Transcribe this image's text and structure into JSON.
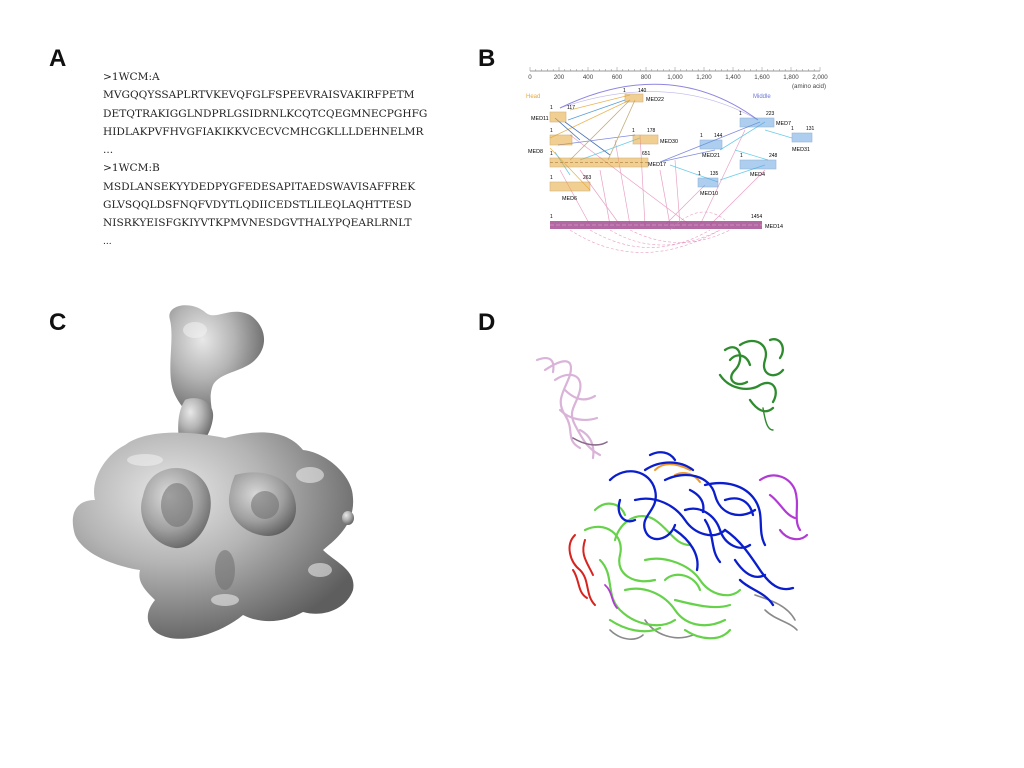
{
  "panels": {
    "a": {
      "letter": "A"
    },
    "b": {
      "letter": "B"
    },
    "c": {
      "letter": "C"
    },
    "d": {
      "letter": "D"
    }
  },
  "sequences": [
    ">1WCM:A",
    "MVGQQYSSAPLRTVKEVQFGLFSPEEVRAISVAKIRFPETM",
    "DETQTRAKIGGLNDPRLGSIDRNLKCQTCQEGMNECPGHFG",
    "HIDLAKPVFHVGFIAKIKKVCECVCMHCGKLLLDEHNELMR",
    "...",
    ">1WCM:B",
    "MSDLANSEKYYDEDPYGFEDESAPITAEDSWAVISAFFREK",
    "GLVSQQLDSFNQFVDYTLQDIICEDSTLILEQLAQHTTESD",
    "NISRKYEISFGKIYVTKPMVNESDGVTHALYPQEARLRNLT",
    "..."
  ],
  "crosslink_map": {
    "axis_ticks": [
      "0",
      "200",
      "400",
      "600",
      "800",
      "1,000",
      "1,200",
      "1,400",
      "1,600",
      "1,800",
      "2,000"
    ],
    "axis_unit": "(amino acid)",
    "module_head": "Head",
    "module_middle": "Middle",
    "proteins": {
      "med11": {
        "name": "MED11",
        "start": "1",
        "end": "117"
      },
      "med22": {
        "name": "MED22",
        "start": "1",
        "end": "140"
      },
      "med8": {
        "name": "MED8",
        "start": "1",
        "end": ""
      },
      "med30": {
        "name": "MED30",
        "start": "1",
        "end": "178"
      },
      "med17": {
        "name": "MED17",
        "start": "1",
        "end": "651"
      },
      "med6": {
        "name": "MED6",
        "start": "1",
        "end": "263"
      },
      "med21": {
        "name": "MED21",
        "start": "1",
        "end": "144"
      },
      "med7": {
        "name": "MED7",
        "start": "1",
        "end": "223"
      },
      "med31": {
        "name": "MED31",
        "start": "1",
        "end": "131"
      },
      "med10": {
        "name": "MED10",
        "start": "1",
        "end": "135"
      },
      "med4": {
        "name": "MED4",
        "start": "1",
        "end": "248"
      },
      "med14": {
        "name": "MED14",
        "start": "1",
        "end": "1454"
      }
    },
    "colors": {
      "head": "#e7a93a",
      "middle": "#5f9fe0",
      "med14": "#a54f93",
      "link_pink": "#e48ab8",
      "link_blue": "#6a78d6",
      "link_cyan": "#53c4e6"
    }
  },
  "density_map": {
    "fill": "#9a9a9a"
  },
  "structure": {
    "colors": {
      "pink": "#d9b4d8",
      "dark_green": "#2e8b2e",
      "blue": "#0a1ecc",
      "green": "#66d24a",
      "magenta": "#b23ad4",
      "red": "#d8231e",
      "gray": "#8a8a8a",
      "orange": "#f09a2a"
    }
  }
}
